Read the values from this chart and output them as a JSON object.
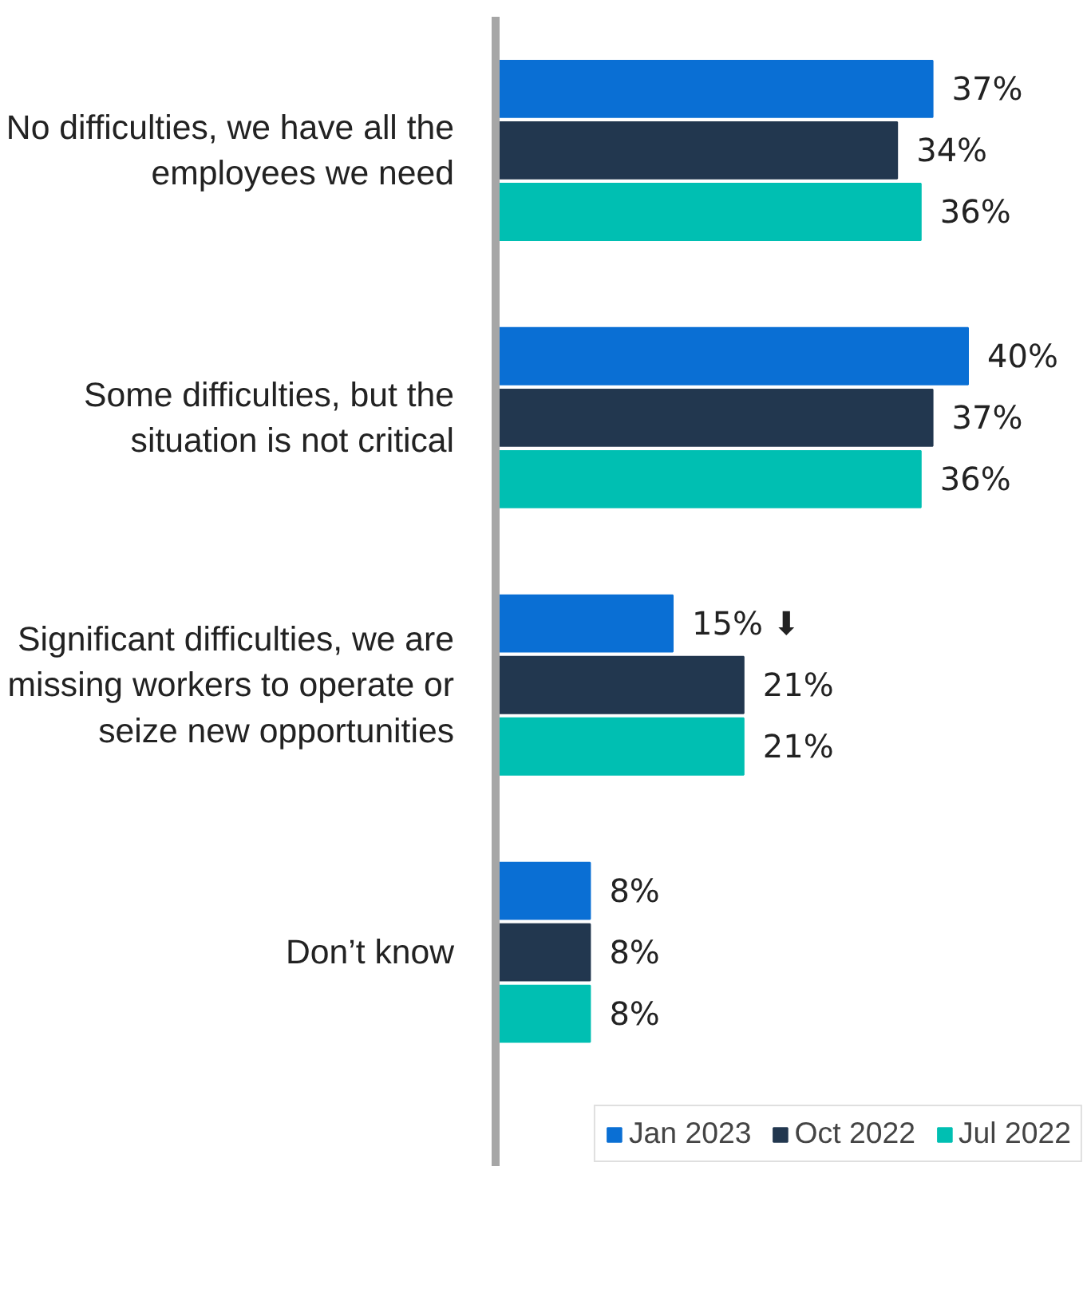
{
  "chart_data": {
    "type": "bar",
    "orientation": "horizontal",
    "categories": [
      "No difficulties, we have all the employees we need",
      "Some difficulties, but the situation is not critical",
      "Significant difficulties, we are missing workers to operate or seize new opportunities",
      "Don’t know"
    ],
    "series": [
      {
        "name": "Jan 2023",
        "color": "#0a6fd4",
        "values": [
          37,
          40,
          15,
          8
        ],
        "value_labels": [
          "37%",
          "40%",
          "15% ⬇",
          "8%"
        ]
      },
      {
        "name": "Oct 2022",
        "color": "#22374f",
        "values": [
          34,
          37,
          21,
          8
        ],
        "value_labels": [
          "34%",
          "37%",
          "21%",
          "8%"
        ]
      },
      {
        "name": "Jul 2022",
        "color": "#00bfb2",
        "values": [
          36,
          36,
          21,
          8
        ],
        "value_labels": [
          "36%",
          "36%",
          "21%",
          "8%"
        ]
      }
    ],
    "legend": "bottom",
    "grid": false
  }
}
